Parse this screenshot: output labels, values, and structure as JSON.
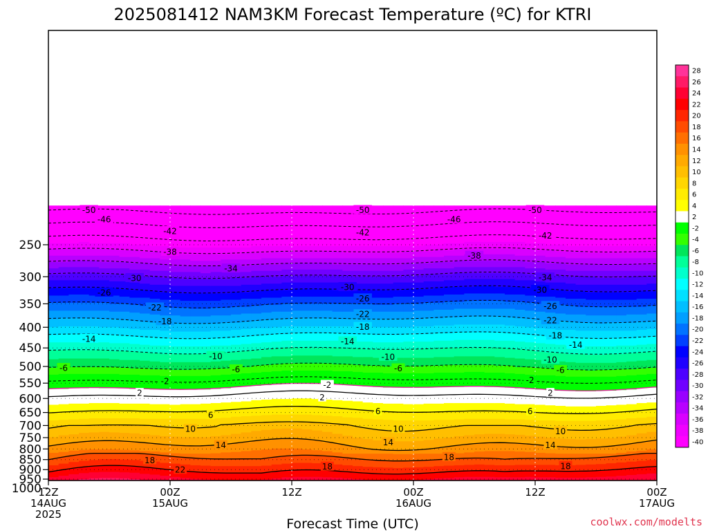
{
  "chart_data": {
    "type": "heatmap",
    "title": "2025081412 NAM3KM Forecast Temperature (ºC) for KTRI",
    "xlabel": "Forecast Time (UTC)",
    "ylabel": "",
    "x_ticks": [
      {
        "hour": 0,
        "lines": [
          "12Z",
          "14AUG",
          "2025"
        ]
      },
      {
        "hour": 12,
        "lines": [
          "00Z",
          "15AUG"
        ]
      },
      {
        "hour": 24,
        "lines": [
          "12Z"
        ]
      },
      {
        "hour": 36,
        "lines": [
          "00Z",
          "16AUG"
        ]
      },
      {
        "hour": 48,
        "lines": [
          "12Z"
        ]
      },
      {
        "hour": 60,
        "lines": [
          "00Z",
          "17AUG"
        ]
      }
    ],
    "x_range_hours": [
      0,
      60
    ],
    "y_axis": "pressure (hPa), log scale, inverted",
    "y_range": [
      1050,
      200
    ],
    "y_ticks": [
      250,
      300,
      350,
      400,
      450,
      500,
      550,
      600,
      650,
      700,
      750,
      800,
      850,
      900,
      950,
      1000
    ],
    "surface_pressure_hpa": 960,
    "colorbar": {
      "placement": "right",
      "ticks": [
        "28",
        "26",
        "24",
        "22",
        "20",
        "18",
        "16",
        "14",
        "12",
        "10",
        "8",
        "6",
        "4",
        "2",
        "-2",
        "-4",
        "-6",
        "-8",
        "-10",
        "-12",
        "-14",
        "-16",
        "-18",
        "-20",
        "-22",
        "-24",
        "-26",
        "-28",
        "-30",
        "-32",
        "-34",
        "-36",
        "-38",
        "-40"
      ],
      "colors": [
        "#ff3399",
        "#ff1a66",
        "#ff0033",
        "#ff0000",
        "#ff2600",
        "#ff4c00",
        "#ff6f00",
        "#ff9100",
        "#ffaa00",
        "#ffbf00",
        "#ffd600",
        "#ffeb00",
        "#ffff00",
        "#ffffff",
        "#00ff00",
        "#33ff00",
        "#00e65a",
        "#00ff99",
        "#00ffcc",
        "#00ffff",
        "#00e0ff",
        "#00bfff",
        "#009fff",
        "#0073ff",
        "#0040ff",
        "#0000ff",
        "#2000ff",
        "#4d00ff",
        "#7000ff",
        "#9900ff",
        "#b800ff",
        "#d900ff",
        "#f000ff",
        "#ff00ff"
      ]
    },
    "contour_labels": [
      {
        "value": "-50",
        "points": [
          [
            4,
            205
          ],
          [
            31,
            205
          ],
          [
            48,
            205
          ]
        ]
      },
      {
        "value": "-46",
        "points": [
          [
            5.5,
            216
          ],
          [
            40,
            216
          ]
        ]
      },
      {
        "value": "-42",
        "points": [
          [
            12,
            231
          ],
          [
            31,
            233
          ],
          [
            49,
            237
          ]
        ]
      },
      {
        "value": "-38",
        "points": [
          [
            12,
            260
          ],
          [
            42,
            266
          ]
        ]
      },
      {
        "value": "-34",
        "points": [
          [
            18,
            286
          ],
          [
            49,
            301
          ]
        ]
      },
      {
        "value": "-30",
        "points": [
          [
            8.5,
            302
          ],
          [
            29.5,
            318
          ],
          [
            48.5,
            323
          ]
        ]
      },
      {
        "value": "-26",
        "points": [
          [
            5.5,
            328
          ],
          [
            31,
            339
          ],
          [
            49.5,
            354
          ]
        ]
      },
      {
        "value": "-22",
        "points": [
          [
            10.5,
            357
          ],
          [
            31,
            371
          ],
          [
            49.5,
            384
          ]
        ]
      },
      {
        "value": "-18",
        "points": [
          [
            11.5,
            386
          ],
          [
            31,
            399
          ],
          [
            50,
            419
          ]
        ]
      },
      {
        "value": "-14",
        "points": [
          [
            4,
            427
          ],
          [
            29.5,
            433
          ],
          [
            52,
            442
          ]
        ]
      },
      {
        "value": "-10",
        "points": [
          [
            16.5,
            471
          ],
          [
            33.5,
            473
          ],
          [
            49.5,
            481
          ]
        ]
      },
      {
        "value": "-6",
        "points": [
          [
            1.5,
            504
          ],
          [
            18.5,
            508
          ],
          [
            34.5,
            505
          ],
          [
            50.5,
            510
          ]
        ]
      },
      {
        "value": "-2",
        "points": [
          [
            11.5,
            543
          ],
          [
            27.5,
            555
          ],
          [
            47.5,
            540
          ]
        ]
      },
      {
        "value": "2",
        "points": [
          [
            9,
            581
          ],
          [
            27,
            596
          ],
          [
            49.5,
            581
          ]
        ]
      },
      {
        "value": "6",
        "points": [
          [
            16,
            659
          ],
          [
            32.5,
            645
          ],
          [
            47.5,
            645
          ]
        ]
      },
      {
        "value": "10",
        "points": [
          [
            14,
            713
          ],
          [
            34.5,
            713
          ],
          [
            50.5,
            722
          ]
        ]
      },
      {
        "value": "14",
        "points": [
          [
            17,
            782
          ],
          [
            33.5,
            770
          ],
          [
            49.5,
            782
          ]
        ]
      },
      {
        "value": "18",
        "points": [
          [
            10,
            852
          ],
          [
            27.5,
            884
          ],
          [
            39.5,
            837
          ],
          [
            51,
            881
          ]
        ]
      },
      {
        "value": "22",
        "points": [
          [
            13,
            900
          ]
        ]
      }
    ],
    "credit": "coolwx.com/modelts"
  }
}
